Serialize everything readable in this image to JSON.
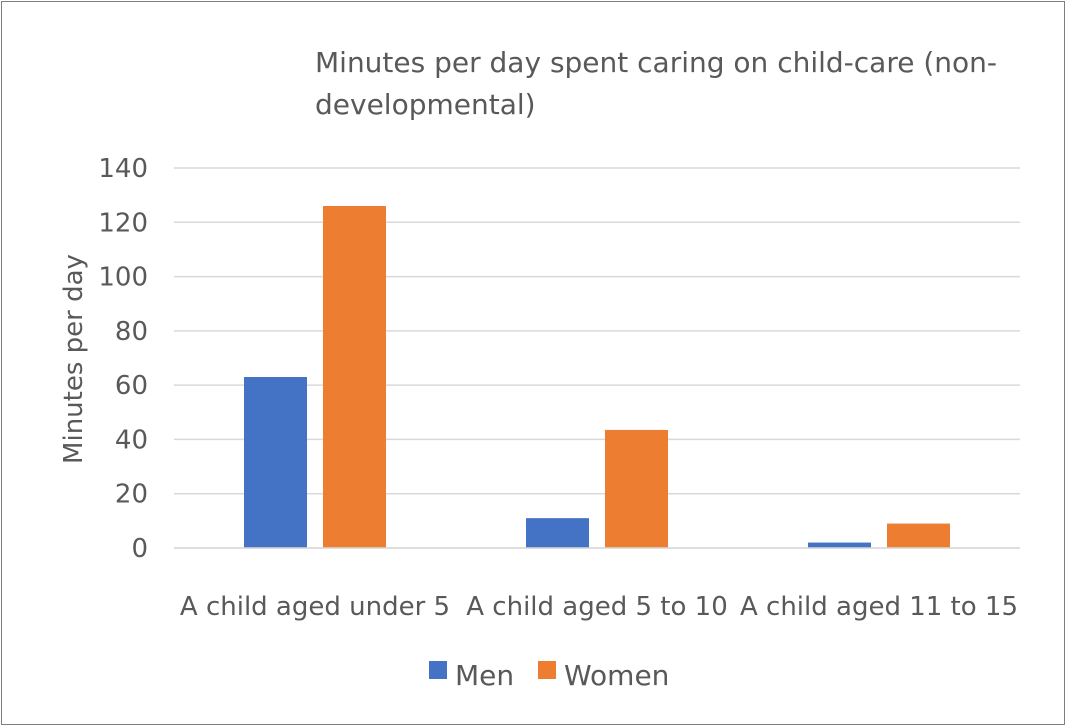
{
  "chart_data": {
    "type": "bar",
    "title_lines": [
      "Minutes per day spent caring on child-care (non-",
      "developmental)"
    ],
    "xlabel": "",
    "ylabel": "Minutes per day",
    "categories": [
      "A child aged under 5",
      "A child aged 5 to 10",
      "A child aged 11 to 15"
    ],
    "series": [
      {
        "name": "Men",
        "color": "#4472c4",
        "values": [
          63,
          11,
          2
        ]
      },
      {
        "name": "Women",
        "color": "#ed7d31",
        "values": [
          126,
          43.5,
          9
        ]
      }
    ],
    "ylim": [
      0,
      140
    ],
    "yticks": [
      0,
      20,
      40,
      60,
      80,
      100,
      120,
      140
    ],
    "grid": true,
    "legend_position": "bottom"
  }
}
